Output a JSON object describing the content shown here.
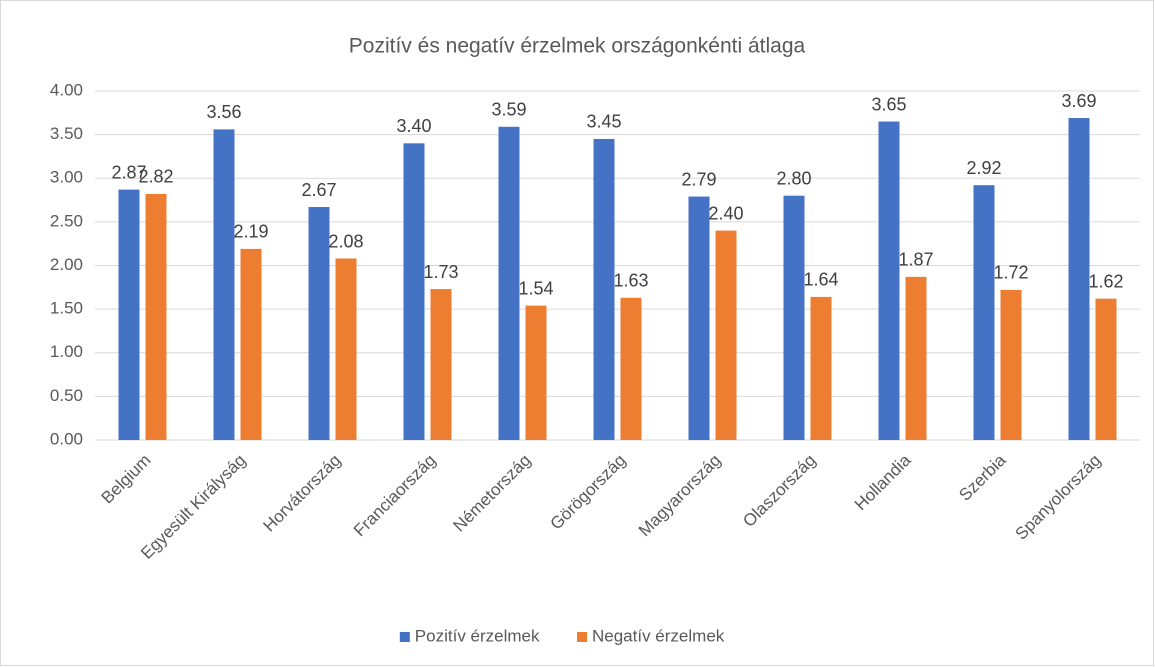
{
  "chart_data": {
    "type": "bar",
    "title": "Pozitív és negatív érzelmek országonkénti átlaga",
    "categories": [
      "Belgium",
      "Egyesült Királyság",
      "Horvátország",
      "Franciaország",
      "Németország",
      "Görögország",
      "Magyarország",
      "Olaszország",
      "Hollandia",
      "Szerbia",
      "Spanyolország"
    ],
    "series": [
      {
        "name": "Pozitív érzelmek",
        "color": "#4472c4",
        "values": [
          2.87,
          3.56,
          2.67,
          3.4,
          3.59,
          3.45,
          2.79,
          2.8,
          3.65,
          2.92,
          3.69
        ],
        "value_labels": [
          "2.87",
          "3.56",
          "2.67",
          "3.40",
          "3.59",
          "3.45",
          "2.79",
          "2.80",
          "3.65",
          "2.92",
          "3.69"
        ]
      },
      {
        "name": "Negatív érzelmek",
        "color": "#ed7d31",
        "values": [
          2.82,
          2.19,
          2.08,
          1.73,
          1.54,
          1.63,
          2.4,
          1.64,
          1.87,
          1.72,
          1.62
        ],
        "value_labels": [
          "2.82",
          "2.19",
          "2.08",
          "1.73",
          "1.54",
          "1.63",
          "2.40",
          "1.64",
          "1.87",
          "1.72",
          "1.62"
        ]
      }
    ],
    "ylim": [
      0,
      4
    ],
    "yticks": [
      {
        "value": 0,
        "label": "0.00"
      },
      {
        "value": 0.5,
        "label": "0.50"
      },
      {
        "value": 1,
        "label": "1.00"
      },
      {
        "value": 1.5,
        "label": "1.50"
      },
      {
        "value": 2,
        "label": "2.00"
      },
      {
        "value": 2.5,
        "label": "2.50"
      },
      {
        "value": 3,
        "label": "3.00"
      },
      {
        "value": 3.5,
        "label": "3.50"
      },
      {
        "value": 4,
        "label": "4.00"
      }
    ],
    "legend": "bottom"
  }
}
